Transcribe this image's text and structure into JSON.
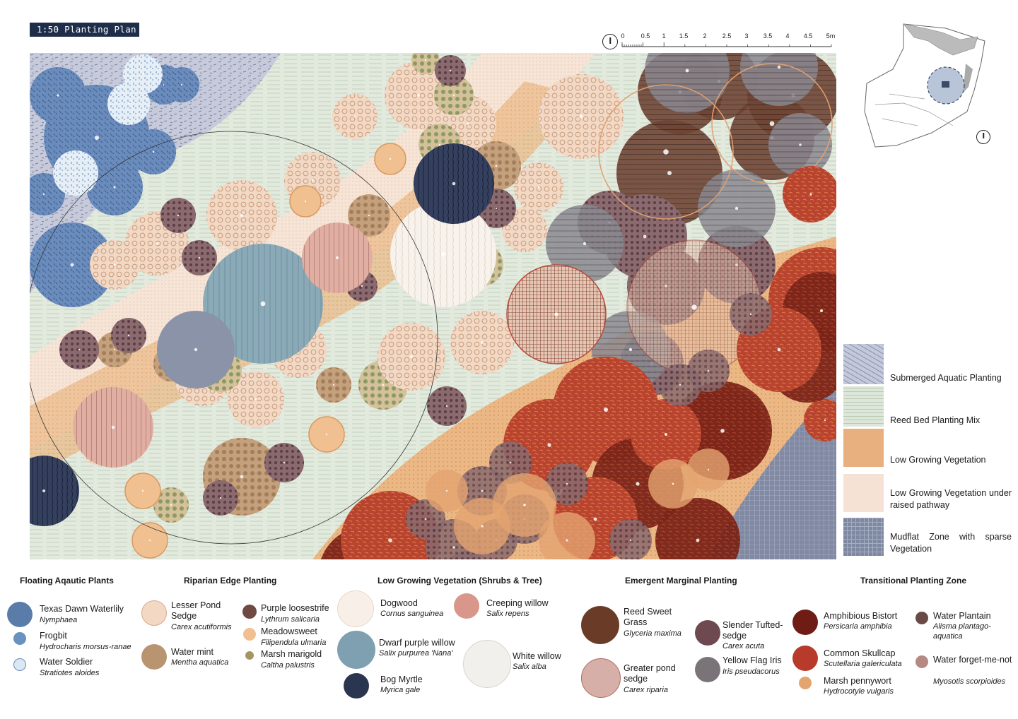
{
  "title": "1:50 Planting Plan",
  "scale": {
    "labels": [
      "0",
      "0.5",
      "1",
      "1.5",
      "2",
      "2.5",
      "3",
      "3.5",
      "4",
      "4.5",
      "5m"
    ]
  },
  "colors": {
    "submerged": "#b9bfd2",
    "reed": "#dce5d8",
    "low_growing": "#e8b07f",
    "raised": "#f5dfd0",
    "mudflat": "#7d879f"
  },
  "zones": [
    {
      "label": "Submerged Aquatic Planting",
      "color": "#c3c8da"
    },
    {
      "label": "Reed Bed Planting Mix",
      "color": "#dde7d9"
    },
    {
      "label": "Low Growing Vegetation",
      "color": "#e8b07f"
    },
    {
      "label": "Low Growing Vegetation under raised pathway",
      "color": "#f6e2d4"
    },
    {
      "label": "Mudflat Zone with sparse Vegetation",
      "color": "#7e88a0"
    }
  ],
  "categories": [
    {
      "title": "Floating Aqautic Plants",
      "species": [
        {
          "name": "Texas Dawn Waterlily",
          "latin": "Nymphaea",
          "color": "#5a7ca8",
          "icon": "waterlily-symbol"
        },
        {
          "name": "Frogbit",
          "latin": "Hydrocharis morsus-ranae",
          "color": "#6a92c0",
          "icon": "frogbit-symbol"
        },
        {
          "name": "Water Soldier",
          "latin": "Stratiotes aloides",
          "color": "#dbe7f3",
          "icon": "water-soldier-symbol"
        }
      ]
    },
    {
      "title": "Riparian Edge Planting",
      "species": [
        {
          "name": "Lesser Pond Sedge",
          "latin": "Carex acutiformis",
          "color": "#f3d8c4",
          "icon": "sedge-symbol"
        },
        {
          "name": "Water mint",
          "latin": "Mentha aquatica",
          "color": "#b89470",
          "icon": "mint-symbol"
        },
        {
          "name": "Purple loosestrife",
          "latin": "Lythrum salicaria",
          "color": "#6e4a42",
          "icon": "loosestrife-symbol"
        },
        {
          "name": "Meadowsweet",
          "latin": "Filipendula ulmaria",
          "color": "#f0c090",
          "icon": "meadowsweet-symbol"
        },
        {
          "name": "Marsh marigold",
          "latin": "Caltha palustris",
          "color": "#a59560",
          "icon": "marigold-symbol"
        }
      ]
    },
    {
      "title": "Low Growing Vegetation (Shrubs & Tree)",
      "species": [
        {
          "name": "Dogwood",
          "latin": "Cornus sanguinea",
          "color": "#f8f0e8",
          "icon": "dogwood-symbol"
        },
        {
          "name": "Creeping willow",
          "latin": "Salix repens",
          "color": "#d9968a",
          "icon": "creeping-willow-symbol"
        },
        {
          "name": "Dwarf purple willow",
          "latin": "Salix purpurea 'Nana'",
          "color": "#7fa0b0",
          "icon": "dwarf-willow-symbol"
        },
        {
          "name": "White willow",
          "latin": "Salix alba",
          "color": "#f2f0ec",
          "icon": "white-willow-symbol"
        },
        {
          "name": "Bog Myrtle",
          "latin": "Myrica gale",
          "color": "#2a3550",
          "icon": "bog-myrtle-symbol"
        }
      ]
    },
    {
      "title": "Emergent Marginal Planting",
      "species": [
        {
          "name": "Reed Sweet Grass",
          "latin": "Glyceria maxima",
          "color": "#6a3c28",
          "icon": "reed-sweet-grass-symbol"
        },
        {
          "name": "Slender Tufted-sedge",
          "latin": "Carex acuta",
          "color": "#6e4a50",
          "icon": "slender-sedge-symbol"
        },
        {
          "name": "Greater pond sedge",
          "latin": "Carex riparia",
          "color": "#d6b0a8",
          "icon": "pond-sedge-symbol"
        },
        {
          "name": "Yellow Flag Iris",
          "latin": "Iris pseudacorus",
          "color": "#7a7478",
          "icon": "iris-symbol"
        }
      ]
    },
    {
      "title": "Transitional Planting Zone",
      "species": [
        {
          "name": "Amphibious Bistort",
          "latin": "Persicaria amphibia",
          "color": "#6e1c14",
          "icon": "bistort-symbol"
        },
        {
          "name": "Water Plantain",
          "latin": "Alisma plantago-aquatica",
          "color": "#6a4a46",
          "icon": "plantain-symbol"
        },
        {
          "name": "Common Skullcap",
          "latin": "Scutellaria galericulata",
          "color": "#b83a2a",
          "icon": "skullcap-symbol"
        },
        {
          "name": "Water forget-me-not",
          "latin": "Myosotis scorpioides",
          "color": "#b68a82",
          "icon": "forget-me-not-symbol"
        },
        {
          "name": "Marsh pennywort",
          "latin": "Hydrocotyle vulgaris",
          "color": "#e3a470",
          "icon": "pennywort-symbol"
        }
      ]
    }
  ]
}
